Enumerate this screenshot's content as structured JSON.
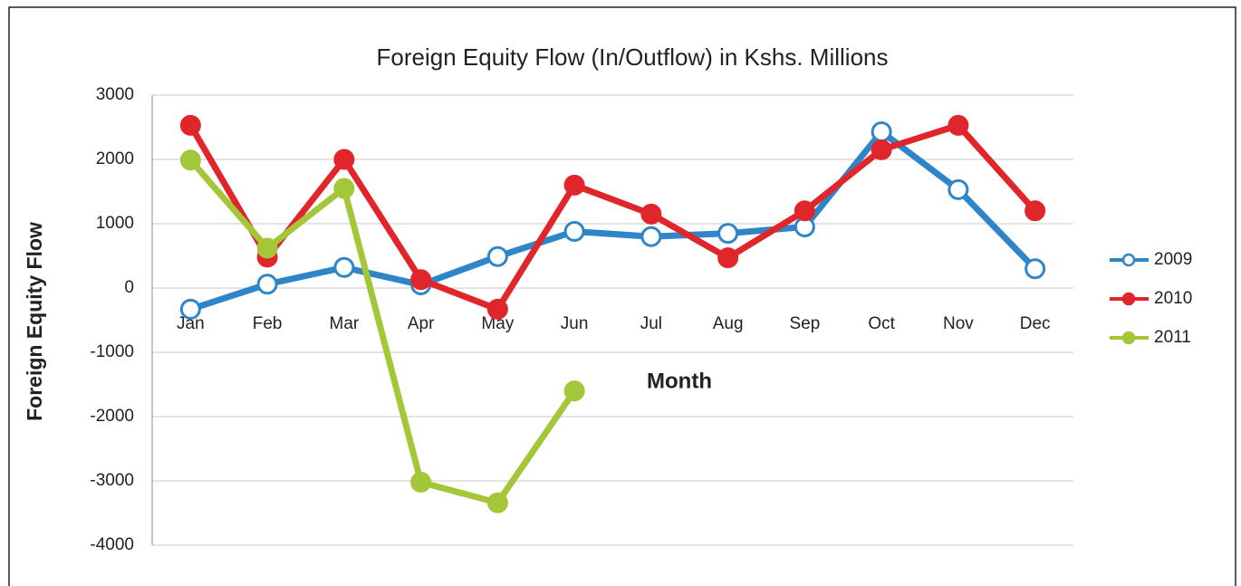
{
  "chart_data": {
    "type": "line",
    "title": "Foreign Equity Flow (In/Outflow) in Kshs. Millions",
    "x_label": "Month",
    "y_label": "Foreign Equity Flow",
    "categories": [
      "Jan",
      "Feb",
      "Mar",
      "Apr",
      "May",
      "Jun",
      "Jul",
      "Aug",
      "Sep",
      "Oct",
      "Nov",
      "Dec"
    ],
    "series": [
      {
        "name": "2009",
        "color": "#2e86c8",
        "marker": "hollow",
        "values": [
          -330,
          60,
          320,
          50,
          490,
          880,
          800,
          850,
          950,
          2430,
          1530,
          300
        ]
      },
      {
        "name": "2010",
        "color": "#e0262b",
        "marker": "filled",
        "values": [
          2530,
          480,
          2000,
          130,
          -330,
          1600,
          1150,
          470,
          1200,
          2150,
          2530,
          1200
        ]
      },
      {
        "name": "2011",
        "color": "#a4c639",
        "marker": "filled",
        "values": [
          1990,
          620,
          1550,
          -3020,
          -3340,
          -1600,
          null,
          null,
          null,
          null,
          null,
          null
        ]
      }
    ],
    "ylim": [
      -4000,
      3000
    ],
    "yticks": [
      -4000,
      -3000,
      -2000,
      -1000,
      0,
      1000,
      2000,
      3000
    ],
    "grid": true,
    "legend": "right"
  }
}
